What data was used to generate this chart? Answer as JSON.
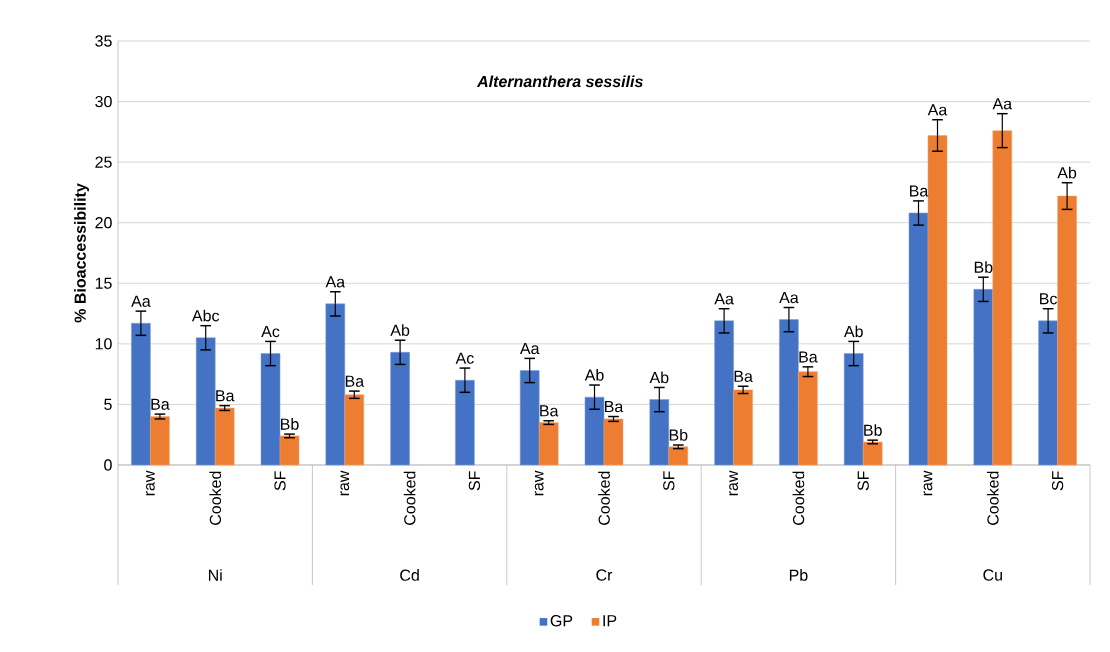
{
  "chart_data": {
    "type": "bar",
    "title": "Alternanthera sessilis",
    "ylabel": "% Bioaccessibility",
    "categories": [
      "raw",
      "Cooked",
      "SF",
      "raw",
      "Cooked",
      "SF",
      "raw",
      "Cooked",
      "SF",
      "raw",
      "Cooked",
      "SF",
      "raw",
      "Cooked",
      "SF"
    ],
    "annotations": [
      "Ni",
      "Cd",
      "Cr",
      "Pb",
      "Cu"
    ],
    "series": [
      {
        "name": "GP",
        "color": "#4472c4",
        "values": [
          11.7,
          10.5,
          9.2,
          13.3,
          9.3,
          7.0,
          7.8,
          5.6,
          5.4,
          11.9,
          12.0,
          9.2,
          20.8,
          14.5,
          11.9
        ],
        "errors": [
          1.0,
          1.0,
          1.0,
          1.0,
          1.0,
          1.0,
          1.0,
          1.0,
          1.0,
          1.0,
          1.0,
          1.0,
          1.0,
          1.0,
          1.0
        ],
        "value_labels": [
          "Aa",
          "Abc",
          "Ac",
          "Aa",
          "Ab",
          "Ac",
          "Aa",
          "Ab",
          "Ab",
          "Aa",
          "Aa",
          "Ab",
          "Ba",
          "Bb",
          "Bc"
        ]
      },
      {
        "name": "IP",
        "color": "#ed7d31",
        "values": [
          4.0,
          4.7,
          2.4,
          5.8,
          null,
          null,
          3.5,
          3.8,
          1.5,
          6.2,
          7.7,
          1.9,
          27.2,
          27.6,
          22.2
        ],
        "errors": [
          0.2,
          0.2,
          0.15,
          0.3,
          null,
          null,
          0.15,
          0.2,
          0.15,
          0.3,
          0.4,
          0.15,
          1.3,
          1.4,
          1.1
        ],
        "value_labels": [
          "Ba",
          "Ba",
          "Bb",
          "Ba",
          null,
          null,
          "Ba",
          "Ba",
          "Bb",
          "Ba",
          "Ba",
          "Bb",
          "Aa",
          "Aa",
          "Ab"
        ]
      }
    ],
    "ylim": [
      0,
      35
    ],
    "yticks": [
      0,
      5,
      10,
      15,
      20,
      25,
      30,
      35
    ],
    "grid": "y",
    "legend": "bottom"
  }
}
